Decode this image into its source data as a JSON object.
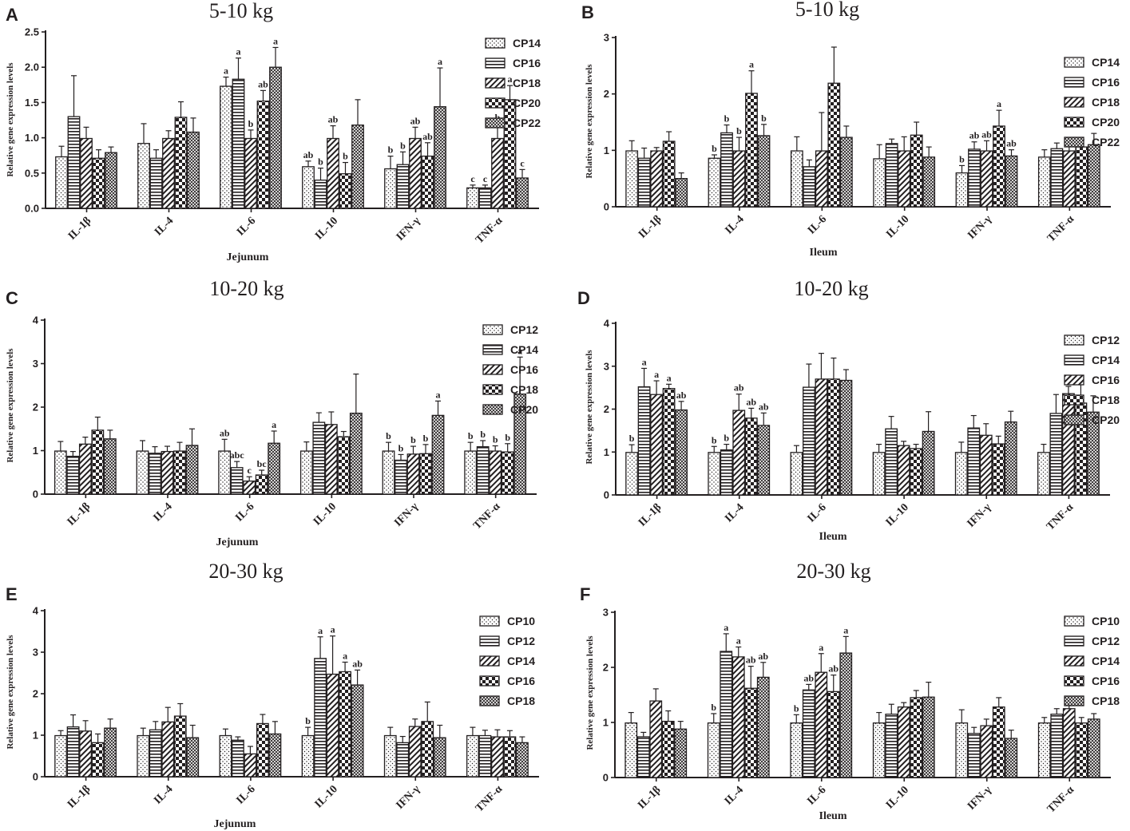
{
  "series_groups": [
    "IL-1β",
    "IL-4",
    "IL-6",
    "IL-10",
    "IFN-γ",
    "TNF-α"
  ],
  "colors": {
    "ink": "#231f20",
    "fill": "#ffffff"
  },
  "chart_data": [
    {
      "panel": "A",
      "type": "bar",
      "title": "5-10 kg",
      "xlabel": "Jejunum",
      "ylabel": "Relative gene expression levels",
      "ylim": [
        0,
        2.5
      ],
      "yticks": [
        "0.0",
        "0.5",
        "1.0",
        "1.5",
        "2.0",
        "2.5"
      ],
      "categories": [
        "IL-1β",
        "IL-4",
        "IL-6",
        "IL-10",
        "IFN-γ",
        "TNF-α"
      ],
      "legend": [
        "CP14",
        "CP16",
        "CP18",
        "CP20",
        "CP22"
      ],
      "series": [
        {
          "name": "CP14",
          "values": [
            0.73,
            0.92,
            1.73,
            0.59,
            0.56,
            0.29
          ],
          "errors": [
            0.15,
            0.28,
            0.13,
            0.08,
            0.18,
            0.04
          ],
          "labels": [
            "",
            "",
            "a",
            "ab",
            "b",
            "c"
          ]
        },
        {
          "name": "CP16",
          "values": [
            1.3,
            0.71,
            1.83,
            0.4,
            0.62,
            0.29
          ],
          "errors": [
            0.58,
            0.12,
            0.3,
            0.17,
            0.18,
            0.04
          ],
          "labels": [
            "",
            "",
            "a",
            "b",
            "b",
            "c"
          ]
        },
        {
          "name": "CP18",
          "values": [
            0.99,
            0.99,
            0.99,
            0.99,
            0.99,
            0.99
          ],
          "errors": [
            0.16,
            0.11,
            0.12,
            0.18,
            0.16,
            0.21
          ],
          "labels": [
            "",
            "",
            "b",
            "ab",
            "ab",
            "b"
          ]
        },
        {
          "name": "CP20",
          "values": [
            0.71,
            1.29,
            1.52,
            0.49,
            0.74,
            1.54
          ],
          "errors": [
            0.12,
            0.22,
            0.15,
            0.16,
            0.19,
            0.2
          ],
          "labels": [
            "",
            "",
            "ab",
            "b",
            "ab",
            "a"
          ]
        },
        {
          "name": "CP22",
          "values": [
            0.79,
            1.08,
            2.0,
            1.18,
            1.44,
            0.43
          ],
          "errors": [
            0.08,
            0.2,
            0.28,
            0.36,
            0.55,
            0.12
          ],
          "labels": [
            "",
            "",
            "a",
            "",
            "a",
            "c"
          ]
        }
      ]
    },
    {
      "panel": "B",
      "type": "bar",
      "title": "5-10 kg",
      "xlabel": "Ileum",
      "ylabel": "Relative gene expression levels",
      "ylim": [
        0,
        3
      ],
      "yticks": [
        "0",
        "1",
        "2",
        "3"
      ],
      "categories": [
        "IL-1β",
        "IL-4",
        "IL-6",
        "IL-10",
        "IFN-γ",
        "TNF-α"
      ],
      "legend": [
        "CP14",
        "CP16",
        "CP18",
        "CP20",
        "CP22"
      ],
      "series": [
        {
          "name": "CP14",
          "values": [
            0.99,
            0.86,
            0.99,
            0.85,
            0.6,
            0.88
          ],
          "errors": [
            0.18,
            0.06,
            0.25,
            0.25,
            0.13,
            0.13
          ],
          "labels": [
            "",
            "b",
            "",
            "",
            "b",
            ""
          ]
        },
        {
          "name": "CP16",
          "values": [
            0.86,
            1.31,
            0.71,
            1.12,
            1.02,
            1.03
          ],
          "errors": [
            0.18,
            0.14,
            0.12,
            0.08,
            0.13,
            0.1
          ],
          "labels": [
            "",
            "b",
            "",
            "",
            "ab",
            ""
          ]
        },
        {
          "name": "CP18",
          "values": [
            0.99,
            0.99,
            0.99,
            0.99,
            0.99,
            0.99
          ],
          "errors": [
            0.06,
            0.24,
            0.68,
            0.25,
            0.18,
            0.08
          ],
          "labels": [
            "",
            "b",
            "",
            "",
            "ab",
            ""
          ]
        },
        {
          "name": "CP20",
          "values": [
            1.16,
            2.01,
            2.19,
            1.27,
            1.43,
            1.06
          ],
          "errors": [
            0.17,
            0.4,
            0.64,
            0.23,
            0.28,
            0.13
          ],
          "labels": [
            "",
            "a",
            "",
            "",
            "a",
            ""
          ]
        },
        {
          "name": "CP22",
          "values": [
            0.5,
            1.26,
            1.23,
            0.88,
            0.9,
            1.1
          ],
          "errors": [
            0.1,
            0.2,
            0.2,
            0.18,
            0.11,
            0.2
          ],
          "labels": [
            "",
            "b",
            "",
            "",
            "ab",
            ""
          ]
        }
      ]
    },
    {
      "panel": "C",
      "type": "bar",
      "title": "10-20 kg",
      "xlabel": "Jejunum",
      "ylabel": "Relative gene expression levels",
      "ylim": [
        0,
        4
      ],
      "yticks": [
        "0",
        "1",
        "2",
        "3",
        "4"
      ],
      "categories": [
        "IL-1β",
        "IL-4",
        "IL-6",
        "IL-10",
        "IFN-γ",
        "TNF-α"
      ],
      "legend": [
        "CP12",
        "CP14",
        "CP16",
        "CP18",
        "CP20"
      ],
      "series": [
        {
          "name": "CP12",
          "values": [
            0.99,
            0.99,
            0.99,
            0.99,
            0.99,
            0.99
          ],
          "errors": [
            0.22,
            0.24,
            0.27,
            0.21,
            0.2,
            0.2
          ],
          "labels": [
            "",
            "",
            "ab",
            "",
            "b",
            "b"
          ]
        },
        {
          "name": "CP14",
          "values": [
            0.87,
            0.94,
            0.61,
            1.65,
            0.78,
            1.09
          ],
          "errors": [
            0.11,
            0.15,
            0.14,
            0.22,
            0.13,
            0.14
          ],
          "labels": [
            "",
            "",
            "abc",
            "",
            "b",
            "b"
          ]
        },
        {
          "name": "CP16",
          "values": [
            1.15,
            0.98,
            0.3,
            1.6,
            0.92,
            0.99
          ],
          "errors": [
            0.16,
            0.12,
            0.1,
            0.29,
            0.18,
            0.12
          ],
          "labels": [
            "",
            "",
            "c",
            "",
            "b",
            "b"
          ]
        },
        {
          "name": "CP18",
          "values": [
            1.47,
            0.99,
            0.44,
            1.32,
            0.93,
            0.97
          ],
          "errors": [
            0.3,
            0.2,
            0.11,
            0.12,
            0.21,
            0.19
          ],
          "labels": [
            "",
            "",
            "bc",
            "",
            "b",
            "b"
          ]
        },
        {
          "name": "CP20",
          "values": [
            1.27,
            1.12,
            1.17,
            1.86,
            1.81,
            2.3
          ],
          "errors": [
            0.2,
            0.38,
            0.28,
            0.9,
            0.33,
            0.85
          ],
          "labels": [
            "",
            "",
            "a",
            "",
            "a",
            "a"
          ]
        }
      ]
    },
    {
      "panel": "D",
      "type": "bar",
      "title": "10-20 kg",
      "xlabel": "Ileum",
      "ylabel": "Relative gene expression levels",
      "ylim": [
        0,
        4
      ],
      "yticks": [
        "0",
        "1",
        "2",
        "3",
        "4"
      ],
      "categories": [
        "IL-1β",
        "IL-4",
        "IL-6",
        "IL-10",
        "IFN-γ",
        "TNF-α"
      ],
      "legend": [
        "CP12",
        "CP14",
        "CP16",
        "CP18",
        "CP20"
      ],
      "series": [
        {
          "name": "CP12",
          "values": [
            0.99,
            0.99,
            0.99,
            0.99,
            0.99,
            0.99
          ],
          "errors": [
            0.18,
            0.14,
            0.16,
            0.19,
            0.24,
            0.19
          ],
          "labels": [
            "b",
            "b",
            "",
            "",
            "",
            ""
          ]
        },
        {
          "name": "CP14",
          "values": [
            2.52,
            1.05,
            2.51,
            1.54,
            1.56,
            1.9
          ],
          "errors": [
            0.43,
            0.13,
            0.54,
            0.29,
            0.29,
            0.44
          ],
          "labels": [
            "a",
            "b",
            "",
            "",
            "",
            ""
          ]
        },
        {
          "name": "CP16",
          "values": [
            2.34,
            1.97,
            2.7,
            1.15,
            1.39,
            2.36
          ],
          "errors": [
            0.32,
            0.38,
            0.6,
            0.1,
            0.27,
            0.17
          ],
          "labels": [
            "a",
            "ab",
            "",
            "",
            "",
            ""
          ]
        },
        {
          "name": "CP18",
          "values": [
            2.48,
            1.79,
            2.7,
            1.08,
            1.19,
            2.14
          ],
          "errors": [
            0.1,
            0.23,
            0.49,
            0.1,
            0.18,
            0.48
          ],
          "labels": [
            "a",
            "ab",
            "",
            "",
            "",
            ""
          ]
        },
        {
          "name": "CP20",
          "values": [
            1.98,
            1.62,
            2.67,
            1.48,
            1.7,
            1.93
          ],
          "errors": [
            0.2,
            0.29,
            0.25,
            0.46,
            0.25,
            0.38
          ],
          "labels": [
            "ab",
            "ab",
            "",
            "",
            "",
            ""
          ]
        }
      ]
    },
    {
      "panel": "E",
      "type": "bar",
      "title": "20-30 kg",
      "xlabel": "Jejunum",
      "ylabel": "Relative gene expression levels",
      "ylim": [
        0,
        4
      ],
      "yticks": [
        "0",
        "1",
        "2",
        "3",
        "4"
      ],
      "categories": [
        "IL-1β",
        "IL-4",
        "IL-6",
        "IL-10",
        "IFN-γ",
        "TNF-α"
      ],
      "legend": [
        "CP10",
        "CP12",
        "CP14",
        "CP16",
        "CP18"
      ],
      "series": [
        {
          "name": "CP10",
          "values": [
            0.99,
            0.99,
            0.99,
            0.99,
            0.99,
            0.99
          ],
          "errors": [
            0.12,
            0.18,
            0.16,
            0.2,
            0.2,
            0.2
          ],
          "labels": [
            "",
            "",
            "",
            "b",
            "",
            ""
          ]
        },
        {
          "name": "CP12",
          "values": [
            1.2,
            1.13,
            0.88,
            2.85,
            0.82,
            0.99
          ],
          "errors": [
            0.29,
            0.2,
            0.08,
            0.52,
            0.15,
            0.13
          ],
          "labels": [
            "",
            "",
            "",
            "a",
            "",
            ""
          ]
        },
        {
          "name": "CP14",
          "values": [
            1.1,
            1.32,
            0.55,
            2.47,
            1.21,
            0.96
          ],
          "errors": [
            0.25,
            0.35,
            0.18,
            0.92,
            0.18,
            0.17
          ],
          "labels": [
            "",
            "",
            "",
            "a",
            "",
            ""
          ]
        },
        {
          "name": "CP16",
          "values": [
            0.82,
            1.46,
            1.28,
            2.53,
            1.33,
            0.96
          ],
          "errors": [
            0.21,
            0.3,
            0.22,
            0.23,
            0.47,
            0.15
          ],
          "labels": [
            "",
            "",
            "",
            "a",
            "",
            ""
          ]
        },
        {
          "name": "CP18",
          "values": [
            1.17,
            0.94,
            1.03,
            2.21,
            0.94,
            0.82
          ],
          "errors": [
            0.22,
            0.3,
            0.3,
            0.36,
            0.3,
            0.14
          ],
          "labels": [
            "",
            "",
            "",
            "ab",
            "",
            ""
          ]
        }
      ]
    },
    {
      "panel": "F",
      "type": "bar",
      "title": "20-30 kg",
      "xlabel": "Ileum",
      "ylabel": "Relative gene expression levels",
      "ylim": [
        0,
        3
      ],
      "yticks": [
        "0",
        "1",
        "2",
        "3"
      ],
      "categories": [
        "IL-1β",
        "IL-4",
        "IL-6",
        "IL-10",
        "IFN-γ",
        "TNF-α"
      ],
      "legend": [
        "CP10",
        "CP12",
        "CP14",
        "CP16",
        "CP18"
      ],
      "series": [
        {
          "name": "CP10",
          "values": [
            0.99,
            0.99,
            0.99,
            0.99,
            0.99,
            0.99
          ],
          "errors": [
            0.19,
            0.17,
            0.15,
            0.19,
            0.24,
            0.1
          ],
          "labels": [
            "",
            "b",
            "b",
            "",
            "",
            ""
          ]
        },
        {
          "name": "CP12",
          "values": [
            0.74,
            2.29,
            1.59,
            1.15,
            0.8,
            1.15
          ],
          "errors": [
            0.08,
            0.32,
            0.1,
            0.18,
            0.11,
            0.1
          ],
          "labels": [
            "",
            "a",
            "ab",
            "",
            "",
            ""
          ]
        },
        {
          "name": "CP14",
          "values": [
            1.39,
            2.19,
            1.91,
            1.28,
            0.94,
            1.25
          ],
          "errors": [
            0.22,
            0.18,
            0.34,
            0.08,
            0.12,
            0.12
          ],
          "labels": [
            "",
            "a",
            "a",
            "",
            "",
            ""
          ]
        },
        {
          "name": "CP16",
          "values": [
            1.02,
            1.62,
            1.56,
            1.45,
            1.28,
            0.99
          ],
          "errors": [
            0.19,
            0.4,
            0.3,
            0.13,
            0.17,
            0.1
          ],
          "labels": [
            "",
            "ab",
            "ab",
            "",
            "",
            ""
          ]
        },
        {
          "name": "CP18",
          "values": [
            0.88,
            1.82,
            2.26,
            1.46,
            0.71,
            1.06
          ],
          "errors": [
            0.14,
            0.27,
            0.3,
            0.27,
            0.15,
            0.1
          ],
          "labels": [
            "",
            "ab",
            "a",
            "",
            "",
            ""
          ]
        }
      ]
    }
  ]
}
